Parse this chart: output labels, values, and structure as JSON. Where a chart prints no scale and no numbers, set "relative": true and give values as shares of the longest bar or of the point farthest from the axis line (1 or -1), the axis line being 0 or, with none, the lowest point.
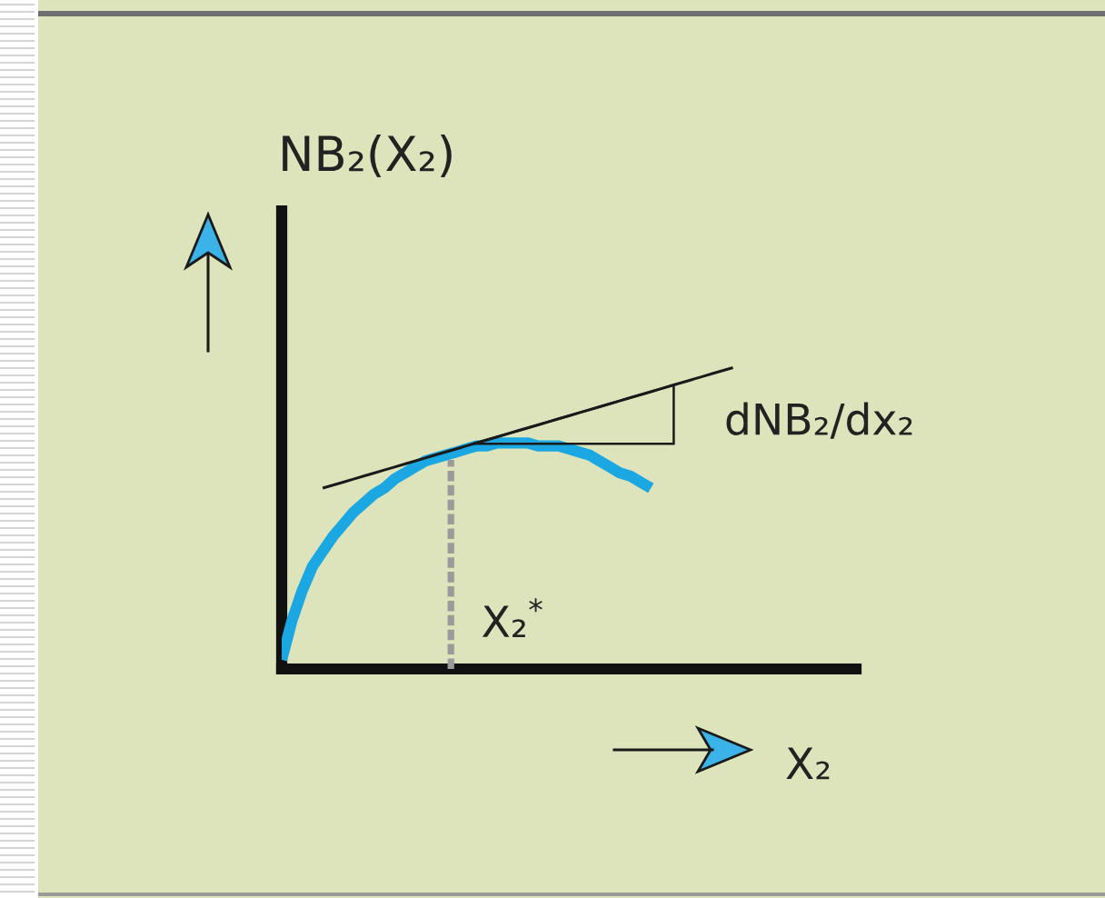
{
  "chart_data": {
    "type": "line",
    "relative": true,
    "ylabel": "NB₂(X₂)",
    "xlabel": "X₂",
    "categories": [
      null,
      null,
      null,
      null,
      null,
      null,
      null,
      null,
      null,
      null,
      null,
      null,
      null,
      null,
      null,
      null,
      null,
      null,
      null,
      null,
      null,
      null,
      null,
      null,
      null,
      null,
      null,
      null,
      null,
      null,
      null,
      null,
      null,
      null,
      null,
      null,
      null,
      null,
      null,
      null,
      null,
      null,
      null,
      null,
      null,
      null,
      null,
      null,
      null,
      null,
      null,
      null,
      null,
      null,
      null,
      null,
      null
    ],
    "series": [
      {
        "color": "#1ba8e2",
        "values": [
          0.03,
          0.16,
          0.26,
          0.34,
          0.39,
          0.44,
          0.48,
          0.52,
          0.55,
          0.58,
          0.6,
          0.63,
          0.65,
          0.67,
          0.69,
          0.7,
          0.71,
          0.72,
          0.73,
          0.74,
          0.74,
          0.75,
          0.75,
          0.75,
          0.75,
          0.74,
          0.74,
          0.74,
          0.73,
          0.72,
          0.71,
          0.69,
          0.67,
          0.65,
          0.64,
          0.62,
          0.6,
          null,
          null,
          null,
          null,
          null,
          null,
          null,
          null,
          null,
          null,
          null,
          null,
          null,
          null,
          null,
          null,
          null,
          null,
          null,
          null
        ]
      },
      {
        "color": "#1a1a1a",
        "values": [
          null,
          null,
          null,
          null,
          0.6,
          0.61,
          0.62,
          0.63,
          0.64,
          0.65,
          0.66,
          0.67,
          0.68,
          0.69,
          0.7,
          0.71,
          0.72,
          0.73,
          0.74,
          0.75,
          0.76,
          0.77,
          0.78,
          0.79,
          0.8,
          0.81,
          0.82,
          0.83,
          0.84,
          0.85,
          0.86,
          0.87,
          0.88,
          0.89,
          0.9,
          0.91,
          0.92,
          0.93,
          0.94,
          0.95,
          0.96,
          0.97,
          0.98,
          0.99,
          1.0,
          null,
          null,
          null,
          null,
          null,
          null,
          null,
          null,
          null,
          null,
          null,
          null
        ]
      }
    ],
    "annotations": [
      "X₂$^{*}$",
      "dNB₂/dx₂"
    ]
  }
}
